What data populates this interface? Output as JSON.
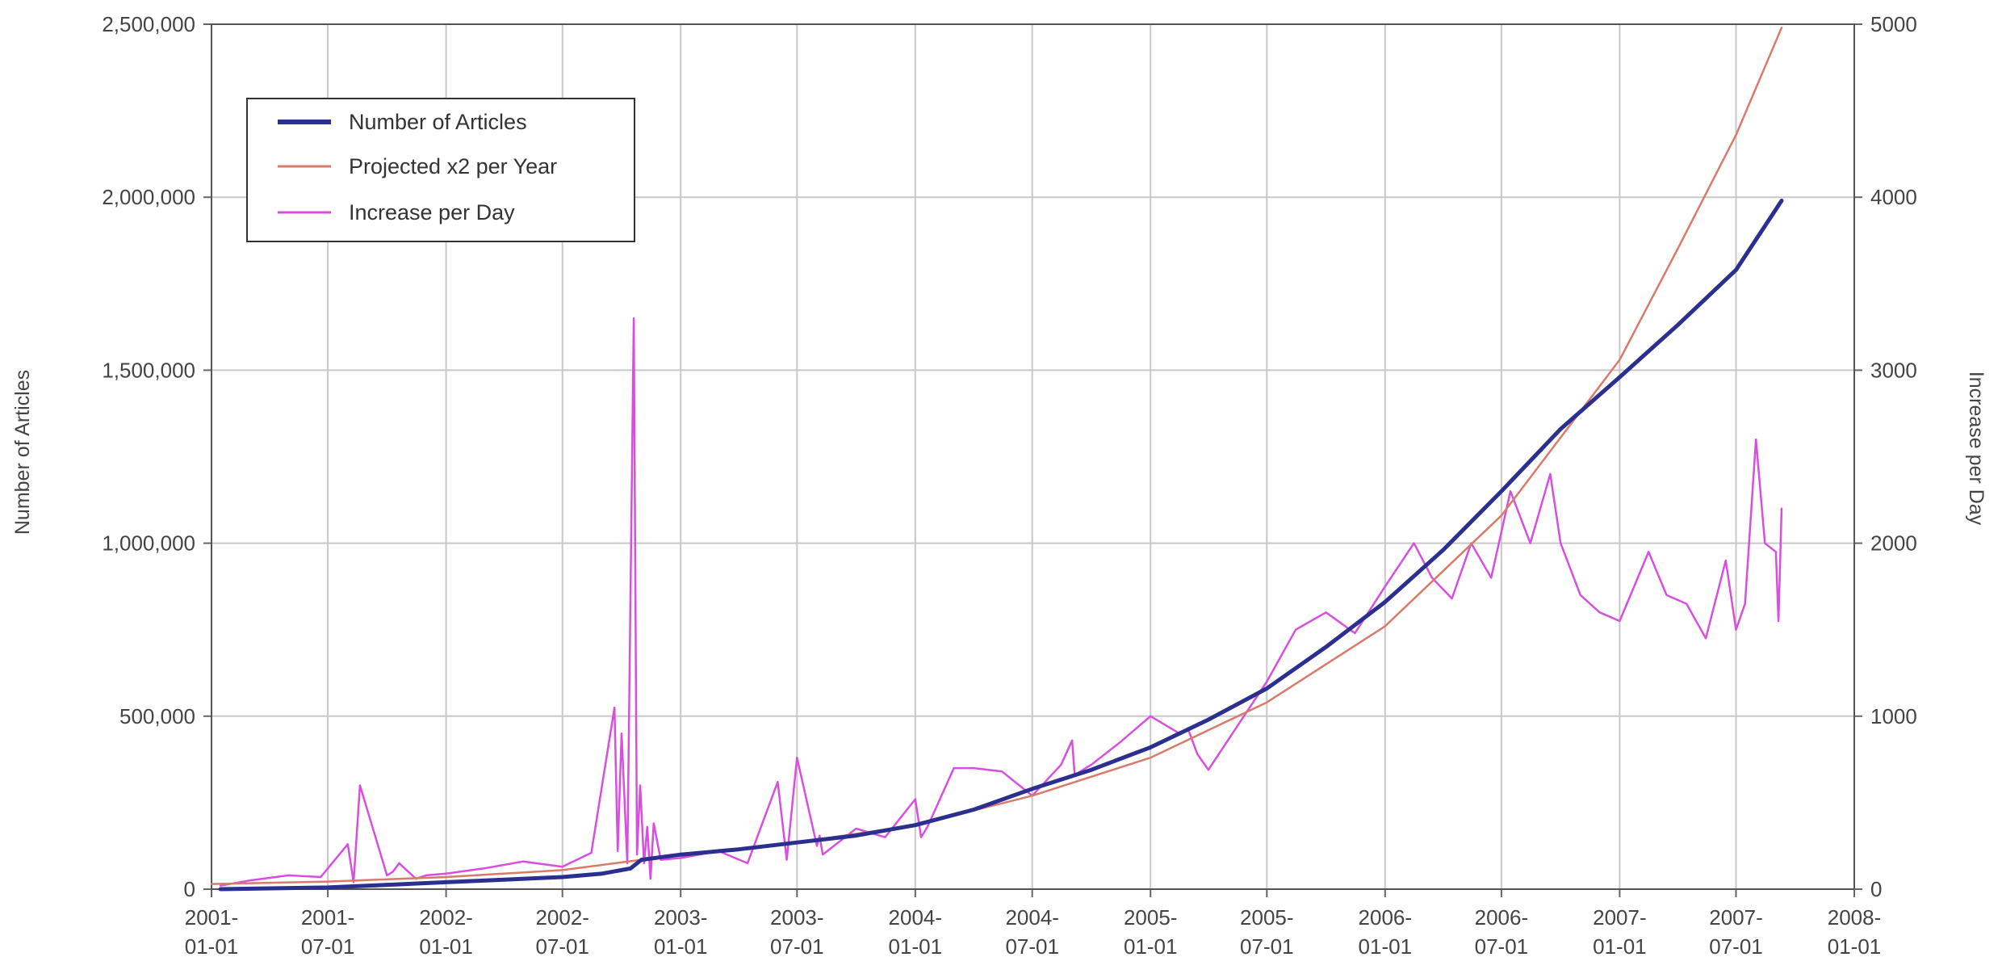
{
  "chart_data": {
    "type": "line",
    "ylabel": "Number of Articles",
    "y2label": "Increase per Day",
    "xlim": [
      "2001-01-01",
      "2008-01-01"
    ],
    "ylim": [
      0,
      2500000
    ],
    "y2lim": [
      0,
      5000
    ],
    "grid": true,
    "legend_position": "top-left",
    "x_ticks": [
      {
        "value": "2001-01-01",
        "line1": "2001-",
        "line2": "01-01"
      },
      {
        "value": "2001-07-01",
        "line1": "2001-",
        "line2": "07-01"
      },
      {
        "value": "2002-01-01",
        "line1": "2002-",
        "line2": "01-01"
      },
      {
        "value": "2002-07-01",
        "line1": "2002-",
        "line2": "07-01"
      },
      {
        "value": "2003-01-01",
        "line1": "2003-",
        "line2": "01-01"
      },
      {
        "value": "2003-07-01",
        "line1": "2003-",
        "line2": "07-01"
      },
      {
        "value": "2004-01-01",
        "line1": "2004-",
        "line2": "01-01"
      },
      {
        "value": "2004-07-01",
        "line1": "2004-",
        "line2": "07-01"
      },
      {
        "value": "2005-01-01",
        "line1": "2005-",
        "line2": "01-01"
      },
      {
        "value": "2005-07-01",
        "line1": "2005-",
        "line2": "07-01"
      },
      {
        "value": "2006-01-01",
        "line1": "2006-",
        "line2": "01-01"
      },
      {
        "value": "2006-07-01",
        "line1": "2006-",
        "line2": "07-01"
      },
      {
        "value": "2007-01-01",
        "line1": "2007-",
        "line2": "01-01"
      },
      {
        "value": "2007-07-01",
        "line1": "2007-",
        "line2": "07-01"
      },
      {
        "value": "2008-01-01",
        "line1": "2008-",
        "line2": "01-01"
      }
    ],
    "y_ticks": [
      {
        "value": 0,
        "label": "0"
      },
      {
        "value": 500000,
        "label": "500,000"
      },
      {
        "value": 1000000,
        "label": "1,000,000"
      },
      {
        "value": 1500000,
        "label": "1,500,000"
      },
      {
        "value": 2000000,
        "label": "2,000,000"
      },
      {
        "value": 2500000,
        "label": "2,500,000"
      }
    ],
    "y2_ticks": [
      {
        "value": 0,
        "label": "0"
      },
      {
        "value": 1000,
        "label": "1000"
      },
      {
        "value": 2000,
        "label": "2000"
      },
      {
        "value": 3000,
        "label": "3000"
      },
      {
        "value": 4000,
        "label": "4000"
      },
      {
        "value": 5000,
        "label": "5000"
      }
    ],
    "series": [
      {
        "name": "Number of Articles",
        "axis": "left",
        "color": "#2b2f8f",
        "x": [
          "2001-01-15",
          "2001-07-01",
          "2002-01-01",
          "2002-07-01",
          "2002-09-01",
          "2002-10-15",
          "2002-11-01",
          "2003-01-01",
          "2003-04-01",
          "2003-07-01",
          "2003-10-01",
          "2004-01-01",
          "2004-04-01",
          "2004-07-01",
          "2004-10-01",
          "2005-01-01",
          "2005-04-01",
          "2005-07-01",
          "2005-10-01",
          "2006-01-01",
          "2006-04-01",
          "2006-07-01",
          "2006-10-01",
          "2007-01-01",
          "2007-04-01",
          "2007-07-01",
          "2007-09-10"
        ],
        "values": [
          0,
          5000,
          20000,
          35000,
          45000,
          60000,
          85000,
          100000,
          115000,
          135000,
          155000,
          185000,
          230000,
          290000,
          345000,
          410000,
          490000,
          580000,
          700000,
          830000,
          980000,
          1150000,
          1330000,
          1480000,
          1630000,
          1790000,
          1990000
        ]
      },
      {
        "name": "Projected x2 per Year",
        "axis": "left",
        "color": "#d97a6a",
        "x": [
          "2001-01-01",
          "2001-07-01",
          "2002-01-01",
          "2002-07-01",
          "2003-01-01",
          "2003-07-01",
          "2004-01-01",
          "2004-07-01",
          "2005-01-01",
          "2005-07-01",
          "2006-01-01",
          "2006-07-01",
          "2007-01-01",
          "2007-04-01",
          "2007-07-01",
          "2007-09-10"
        ],
        "values": [
          15000,
          22000,
          35000,
          55000,
          100000,
          135000,
          185000,
          270000,
          380000,
          540000,
          760000,
          1080000,
          1530000,
          1850000,
          2180000,
          2490000
        ]
      },
      {
        "name": "Increase per Day",
        "axis": "right",
        "color": "#d84fe0",
        "x": [
          "2001-01-15",
          "2001-03-01",
          "2001-05-01",
          "2001-06-20",
          "2001-08-01",
          "2001-08-10",
          "2001-08-20",
          "2001-10-01",
          "2001-10-10",
          "2001-10-20",
          "2001-11-15",
          "2001-12-01",
          "2002-01-01",
          "2002-03-01",
          "2002-05-01",
          "2002-07-01",
          "2002-08-15",
          "2002-09-20",
          "2002-09-25",
          "2002-10-01",
          "2002-10-10",
          "2002-10-20",
          "2002-10-25",
          "2002-10-30",
          "2002-11-05",
          "2002-11-10",
          "2002-11-15",
          "2002-11-20",
          "2002-12-01",
          "2003-01-01",
          "2003-03-01",
          "2003-04-15",
          "2003-06-01",
          "2003-06-15",
          "2003-07-01",
          "2003-08-01",
          "2003-08-05",
          "2003-08-10",
          "2003-10-01",
          "2003-11-15",
          "2004-01-01",
          "2004-01-10",
          "2004-01-20",
          "2004-03-01",
          "2004-04-01",
          "2004-05-15",
          "2004-07-01",
          "2004-08-15",
          "2004-09-01",
          "2004-09-05",
          "2004-10-01",
          "2004-11-15",
          "2005-01-01",
          "2005-02-15",
          "2005-03-01",
          "2005-03-15",
          "2005-04-01",
          "2005-07-01",
          "2005-08-15",
          "2005-10-01",
          "2005-11-15",
          "2006-01-01",
          "2006-02-15",
          "2006-03-15",
          "2006-04-15",
          "2006-05-15",
          "2006-06-15",
          "2006-07-15",
          "2006-08-15",
          "2006-09-15",
          "2006-10-01",
          "2006-11-01",
          "2006-12-01",
          "2007-01-01",
          "2007-02-15",
          "2007-03-15",
          "2007-04-15",
          "2007-05-15",
          "2007-06-15",
          "2007-07-01",
          "2007-07-15",
          "2007-08-01",
          "2007-08-15",
          "2007-09-01",
          "2007-09-05",
          "2007-09-10"
        ],
        "values": [
          20,
          50,
          80,
          70,
          260,
          40,
          600,
          80,
          100,
          150,
          60,
          80,
          90,
          120,
          160,
          130,
          210,
          1050,
          220,
          900,
          150,
          3300,
          200,
          600,
          150,
          360,
          60,
          380,
          170,
          180,
          220,
          150,
          620,
          170,
          760,
          250,
          310,
          200,
          350,
          300,
          520,
          300,
          360,
          700,
          700,
          680,
          540,
          720,
          860,
          660,
          720,
          850,
          1000,
          900,
          920,
          780,
          690,
          1200,
          1500,
          1600,
          1480,
          1750,
          2000,
          1800,
          1680,
          2000,
          1800,
          2300,
          2000,
          2400,
          2000,
          1700,
          1600,
          1550,
          1950,
          1700,
          1650,
          1450,
          1900,
          1500,
          1650,
          2600,
          2000,
          1950,
          1550,
          2200
        ]
      }
    ]
  }
}
